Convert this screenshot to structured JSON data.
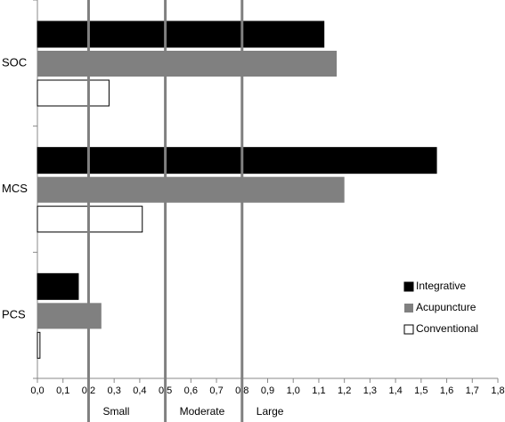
{
  "chart_data": {
    "type": "bar",
    "orientation": "horizontal",
    "categories": [
      "SOC",
      "MCS",
      "PCS"
    ],
    "series": [
      {
        "name": "Integrative",
        "color": "#000000",
        "values": [
          1.12,
          1.56,
          0.16
        ]
      },
      {
        "name": "Acupuncture",
        "color": "#808080",
        "values": [
          1.17,
          1.2,
          0.25
        ]
      },
      {
        "name": "Conventional",
        "color": "#ffffff",
        "values": [
          0.28,
          0.41,
          0.01
        ]
      }
    ],
    "xlim": [
      0,
      1.8
    ],
    "xticks": [
      {
        "value": 0,
        "label": "0,0"
      },
      {
        "value": 0.1,
        "label": "0,1"
      },
      {
        "value": 0.2,
        "label": "0,2"
      },
      {
        "value": 0.3,
        "label": "0,3"
      },
      {
        "value": 0.4,
        "label": "0,4"
      },
      {
        "value": 0.5,
        "label": "0,5"
      },
      {
        "value": 0.6,
        "label": "0,6"
      },
      {
        "value": 0.7,
        "label": "0,7"
      },
      {
        "value": 0.8,
        "label": "0,8"
      },
      {
        "value": 0.9,
        "label": "0,9"
      },
      {
        "value": 1,
        "label": "1,0"
      },
      {
        "value": 1.1,
        "label": "1,1"
      },
      {
        "value": 1.2,
        "label": "1,2"
      },
      {
        "value": 1.3,
        "label": "1,3"
      },
      {
        "value": 1.4,
        "label": "1,4"
      },
      {
        "value": 1.5,
        "label": "1,5"
      },
      {
        "value": 1.6,
        "label": "1,6"
      },
      {
        "value": 1.7,
        "label": "1,7"
      },
      {
        "value": 1.8,
        "label": "1,8"
      }
    ],
    "reference_lines": [
      {
        "value": 0.2,
        "label": "Small"
      },
      {
        "value": 0.5,
        "label": "Moderate"
      },
      {
        "value": 0.8,
        "label": "Large"
      }
    ],
    "grid": false,
    "legend": "lower right"
  }
}
